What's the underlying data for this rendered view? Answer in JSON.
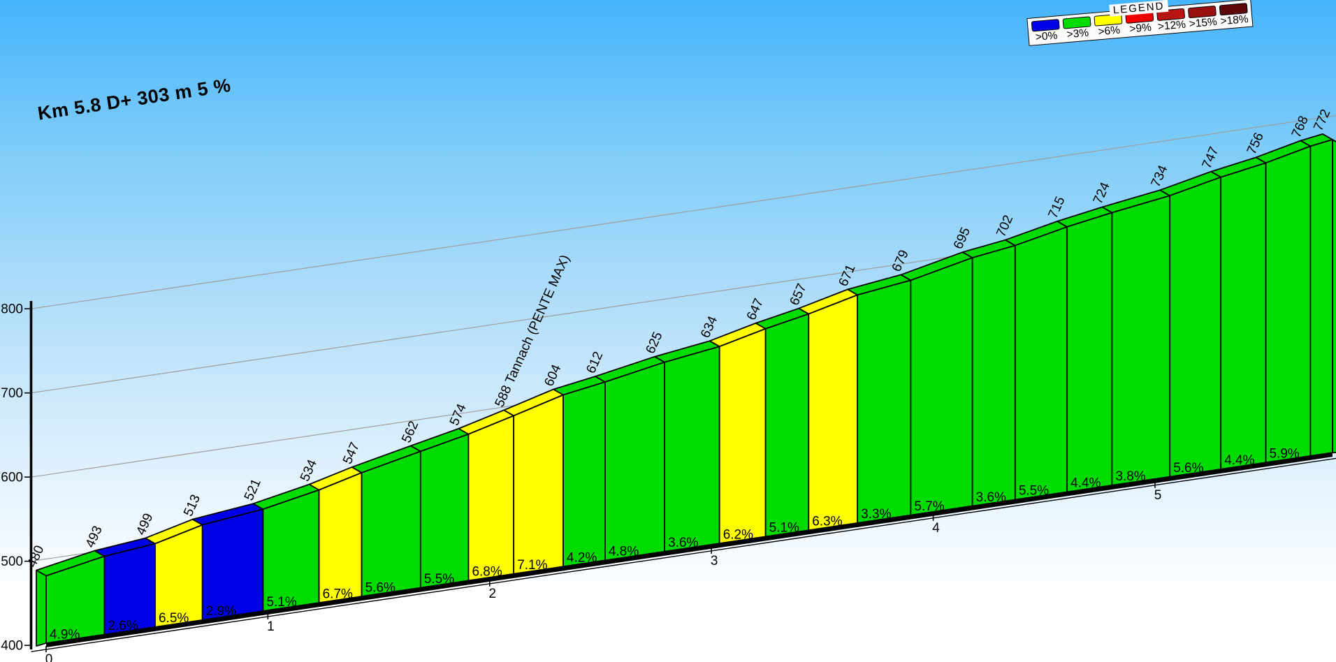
{
  "title": "Km 5.8 D+ 303 m 5 %",
  "legend": {
    "title": "LEGEND",
    "items": [
      {
        "label": ">0%",
        "color": "#0000E8"
      },
      {
        "label": ">3%",
        "color": "#00DC00"
      },
      {
        "label": ">6%",
        "color": "#FFFF00"
      },
      {
        "label": ">9%",
        "color": "#EE0000"
      },
      {
        "label": ">12%",
        "color": "#B81414"
      },
      {
        "label": ">15%",
        "color": "#990F0F"
      },
      {
        "label": ">18%",
        "color": "#5C0808"
      }
    ]
  },
  "chart_data": {
    "type": "area",
    "title": "Km 5.8 D+ 303 m 5 %",
    "x_unit": "km",
    "y_unit": "m",
    "total_km": 5.8,
    "total_gain_m": 303,
    "avg_gradient_pct": 5,
    "x_tick_labels": [
      "0",
      "1",
      "2",
      "3",
      "4",
      "5"
    ],
    "y_tick_labels": [
      "400",
      "500",
      "600",
      "700",
      "800"
    ],
    "y_axis_range": [
      400,
      800
    ],
    "grid": true,
    "legend_position": "top-right",
    "category_colors": {
      "blue": "#0000E8",
      "green": "#00DC00",
      "yellow": "#FFFF00"
    },
    "elevations_m": [
      480,
      493,
      499,
      513,
      521,
      534,
      547,
      562,
      574,
      588,
      604,
      612,
      625,
      634,
      647,
      657,
      671,
      679,
      695,
      702,
      715,
      724,
      734,
      747,
      756,
      768,
      772
    ],
    "elevation_labels": [
      "480",
      "493",
      "499",
      "513",
      "521",
      "534",
      "547",
      "562",
      "574",
      "588 Tannach (PENTE MAX)",
      "604",
      "612",
      "625",
      "634",
      "647",
      "657",
      "671",
      "679",
      "695",
      "702",
      "715",
      "724",
      "734",
      "747",
      "756",
      "768",
      "772"
    ],
    "segments": [
      {
        "gradient_pct": 4.9,
        "category": "green"
      },
      {
        "gradient_pct": 2.6,
        "category": "blue"
      },
      {
        "gradient_pct": 6.5,
        "category": "yellow"
      },
      {
        "gradient_pct": 2.9,
        "category": "blue"
      },
      {
        "gradient_pct": 5.1,
        "category": "green"
      },
      {
        "gradient_pct": 6.7,
        "category": "yellow"
      },
      {
        "gradient_pct": 5.6,
        "category": "green"
      },
      {
        "gradient_pct": 5.5,
        "category": "green"
      },
      {
        "gradient_pct": 6.8,
        "category": "yellow"
      },
      {
        "gradient_pct": 7.1,
        "category": "yellow"
      },
      {
        "gradient_pct": 4.2,
        "category": "green"
      },
      {
        "gradient_pct": 4.8,
        "category": "green"
      },
      {
        "gradient_pct": 3.6,
        "category": "green"
      },
      {
        "gradient_pct": 6.2,
        "category": "yellow"
      },
      {
        "gradient_pct": 5.1,
        "category": "green"
      },
      {
        "gradient_pct": 6.3,
        "category": "yellow"
      },
      {
        "gradient_pct": 3.3,
        "category": "green"
      },
      {
        "gradient_pct": 5.7,
        "category": "green"
      },
      {
        "gradient_pct": 3.6,
        "category": "green"
      },
      {
        "gradient_pct": 5.5,
        "category": "green"
      },
      {
        "gradient_pct": 4.4,
        "category": "green"
      },
      {
        "gradient_pct": 3.8,
        "category": "green"
      },
      {
        "gradient_pct": 5.6,
        "category": "green"
      },
      {
        "gradient_pct": 4.4,
        "category": "green"
      },
      {
        "gradient_pct": 5.9,
        "category": "green"
      },
      {
        "gradient_pct": null,
        "category": "green"
      }
    ]
  }
}
